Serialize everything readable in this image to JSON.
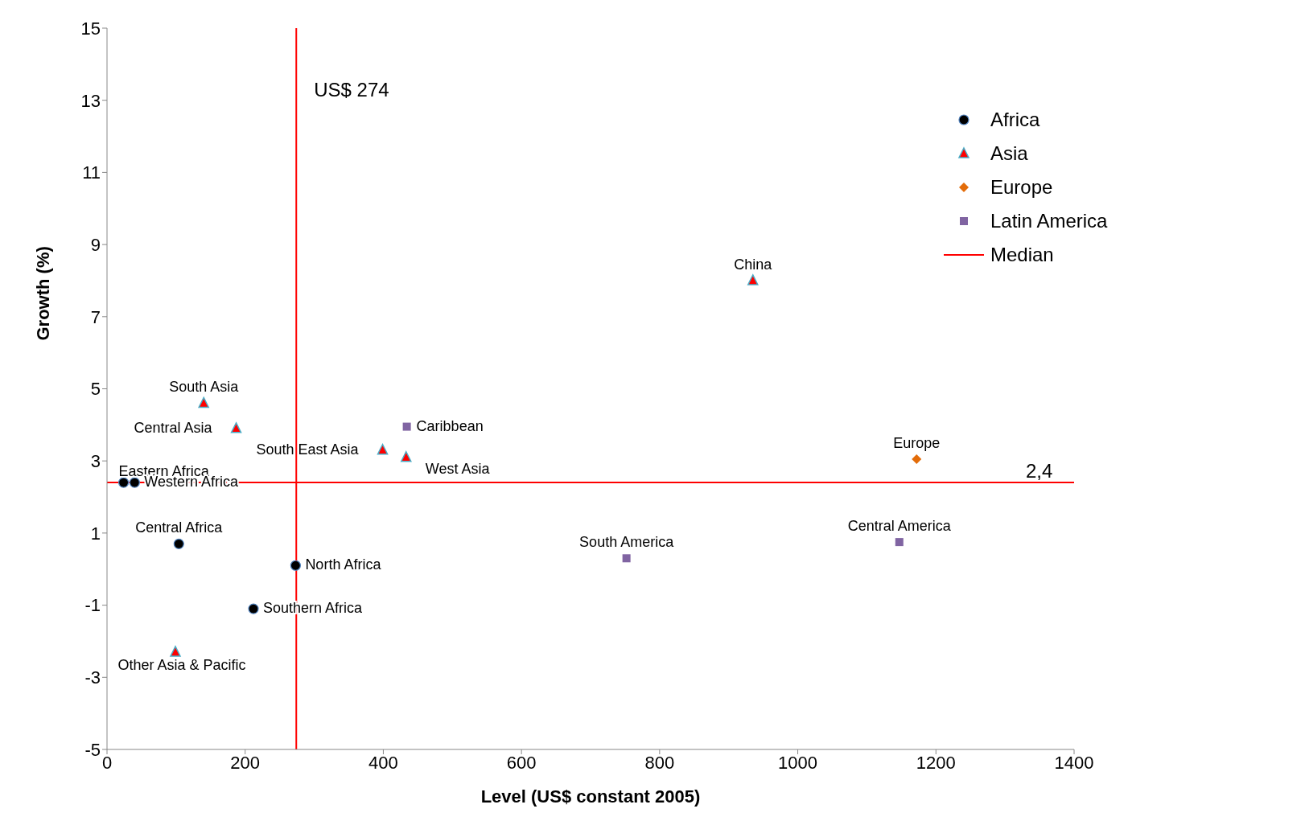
{
  "chart_data": {
    "type": "scatter",
    "xlabel": "Level (US$ constant 2005)",
    "ylabel": "Growth (%)",
    "xlim": [
      0,
      1400
    ],
    "xticks": [
      0,
      200,
      400,
      600,
      800,
      1000,
      1200,
      1400
    ],
    "ylim": [
      -5,
      15
    ],
    "yticks": [
      -5,
      -3,
      -1,
      1,
      3,
      5,
      7,
      9,
      11,
      13,
      15
    ],
    "grid": false,
    "legend": "top right",
    "series": [
      {
        "name": "Africa",
        "color": "#000000",
        "marker": "circle",
        "x": [
          24,
          40,
          104,
          273,
          212
        ],
        "values": [
          2.4,
          2.4,
          0.7,
          0.1,
          -1.1
        ],
        "value_labels": [
          "Eastern Africa",
          "Western Africa",
          "Central Africa",
          "North Africa",
          "Southern Africa"
        ]
      },
      {
        "name": "Asia",
        "color": "#ff0000",
        "marker": "triangle",
        "x": [
          140,
          187,
          399,
          433,
          935,
          99
        ],
        "values": [
          4.6,
          3.9,
          3.3,
          3.1,
          8.0,
          -2.3
        ],
        "value_labels": [
          "South Asia",
          "Central Asia",
          "South East Asia",
          "West Asia",
          "China",
          "Other Asia & Pacific"
        ]
      },
      {
        "name": "Europe",
        "color": "#e36c09",
        "marker": "diamond",
        "x": [
          1172
        ],
        "values": [
          3.05
        ],
        "value_labels": [
          "Europe"
        ]
      },
      {
        "name": "Latin America",
        "color": "#8064a2",
        "marker": "square",
        "x": [
          434,
          752,
          1147
        ],
        "values": [
          3.95,
          0.3,
          0.75
        ],
        "value_labels": [
          "Caribbean",
          "South America",
          "Central America"
        ]
      }
    ],
    "ref_lines": [
      {
        "axis": "x",
        "value": 274,
        "label": "US$ 274",
        "color": "#ff0000"
      },
      {
        "axis": "y",
        "value": 2.4,
        "label": "2,4",
        "color": "#ff0000"
      }
    ],
    "annotations": [
      "Median"
    ]
  }
}
